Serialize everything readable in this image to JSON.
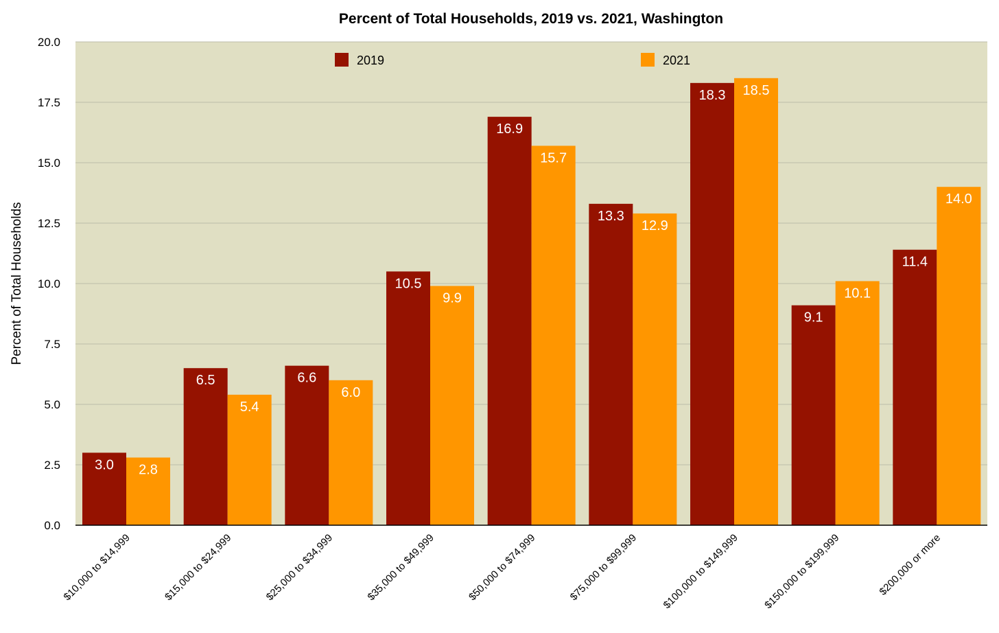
{
  "chart_data": {
    "type": "bar",
    "title": "Percent of Total Households, 2019 vs. 2021, Washington",
    "xlabel": "",
    "ylabel": "Percent of Total Households",
    "ylim": [
      0,
      20
    ],
    "yticks": [
      "0.0",
      "2.5",
      "5.0",
      "7.5",
      "10.0",
      "12.5",
      "15.0",
      "17.5",
      "20.0"
    ],
    "grid": true,
    "legend_position": "top",
    "categories": [
      "$10,000 to $14,999",
      "$15,000 to $24,999",
      "$25,000 to $34,999",
      "$35,000 to $49,999",
      "$50,000 to $74,999",
      "$75,000 to $99,999",
      "$100,000 to $149,999",
      "$150,000 to $199,999",
      "$200,000 or more"
    ],
    "series": [
      {
        "name": "2019",
        "color": "#951200",
        "values": [
          3.0,
          6.5,
          6.6,
          10.5,
          16.9,
          13.3,
          18.3,
          9.1,
          11.4
        ]
      },
      {
        "name": "2021",
        "color": "#FF9600",
        "values": [
          2.8,
          5.4,
          6.0,
          9.9,
          15.7,
          12.9,
          18.5,
          10.1,
          14.0
        ]
      }
    ],
    "colors": {
      "plot_background": "#E0DFC3",
      "grid": "#BDBCA8"
    }
  }
}
